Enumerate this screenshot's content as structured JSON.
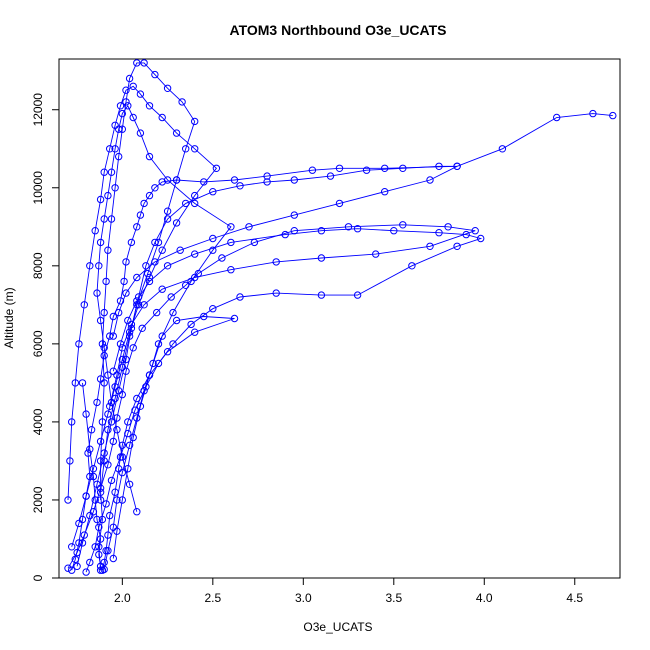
{
  "chart_data": {
    "type": "scatter",
    "title": "ATOM3 Northbound O3e_UCATS",
    "xlabel": "O3e_UCATS",
    "ylabel": "Altitude (m)",
    "xlim": [
      1.65,
      4.75
    ],
    "ylim": [
      0,
      13300
    ],
    "x_ticks": [
      2.0,
      2.5,
      3.0,
      3.5,
      4.0,
      4.5
    ],
    "x_tick_labels": [
      "2.0",
      "2.5",
      "3.0",
      "3.5",
      "4.0",
      "4.5"
    ],
    "y_ticks": [
      0,
      2000,
      4000,
      6000,
      8000,
      10000,
      12000
    ],
    "y_tick_labels": [
      "0",
      "2000",
      "4000",
      "6000",
      "8000",
      "10000",
      "12000"
    ],
    "grid": false,
    "legend": "none",
    "marker": "open-circle",
    "connected": true,
    "color": "#0000ff",
    "series": [
      {
        "x": [
          1.72,
          1.74,
          1.76,
          1.78,
          1.8,
          1.82,
          1.81,
          1.83,
          1.86,
          1.88,
          1.9,
          1.93,
          1.95,
          1.99,
          2.01,
          2.02,
          2.05,
          2.08,
          2.1,
          2.12,
          2.15,
          2.18,
          2.22,
          2.3,
          2.45,
          2.62,
          2.8,
          3.05,
          3.2,
          3.45,
          3.85,
          4.1,
          4.4,
          4.6,
          4.71
        ],
        "y": [
          200,
          480,
          900,
          1500,
          2100,
          2600,
          3200,
          3800,
          4500,
          5100,
          5700,
          6200,
          6700,
          7100,
          7600,
          8100,
          8600,
          9000,
          9300,
          9600,
          9800,
          10000,
          10150,
          10200,
          10150,
          10200,
          10300,
          10450,
          10500,
          10500,
          10550,
          11000,
          11800,
          11900,
          11850
        ]
      },
      {
        "x": [
          1.7,
          1.75,
          1.79,
          1.84,
          1.88,
          1.92,
          1.95,
          1.97,
          2.0,
          2.02,
          2.06,
          2.11,
          2.19,
          2.27,
          2.35,
          2.42,
          2.55,
          2.73,
          2.95,
          3.25,
          3.55,
          3.8,
          3.95,
          3.7,
          3.4,
          3.1,
          2.85,
          2.6,
          2.4,
          2.22,
          2.12,
          2.05,
          2.0,
          1.97,
          1.93
        ],
        "y": [
          250,
          650,
          1100,
          1700,
          2300,
          2900,
          3500,
          4100,
          4700,
          5300,
          5900,
          6400,
          6800,
          7200,
          7500,
          7800,
          8200,
          8600,
          8900,
          9000,
          9050,
          9000,
          8900,
          8500,
          8300,
          8200,
          8100,
          7900,
          7700,
          7400,
          7000,
          6500,
          5900,
          5200,
          4400
        ]
      },
      {
        "x": [
          1.88,
          1.87,
          1.89,
          1.88,
          1.9,
          1.92,
          1.96,
          2.0,
          2.04,
          2.08,
          2.14,
          2.2,
          2.25,
          2.3,
          2.35,
          2.4,
          2.33,
          2.25,
          2.18,
          2.12,
          2.08,
          2.04,
          2.02,
          2.0,
          1.98,
          1.96,
          1.94,
          1.92,
          1.91,
          1.9,
          1.89,
          1.9,
          1.89,
          1.88,
          1.88
        ],
        "y": [
          200,
          800,
          1500,
          2200,
          3000,
          3800,
          4600,
          5400,
          6200,
          7000,
          7800,
          8600,
          9400,
          10200,
          11000,
          11700,
          12200,
          12550,
          12900,
          13200,
          13200,
          12800,
          12200,
          11500,
          10800,
          10000,
          9200,
          8400,
          7600,
          6800,
          6000,
          5000,
          4000,
          3000,
          2000
        ]
      },
      {
        "x": [
          1.8,
          1.82,
          1.85,
          1.87,
          1.91,
          1.94,
          1.99,
          2.03,
          2.07,
          2.13,
          2.2,
          2.28,
          2.38,
          2.5,
          2.65,
          2.85,
          3.1,
          3.3,
          3.6,
          3.85,
          3.98,
          3.9,
          3.75,
          3.5,
          3.3,
          3.1,
          2.9,
          2.6,
          2.4,
          2.25,
          2.15,
          2.08,
          2.03,
          1.99,
          1.95
        ],
        "y": [
          150,
          400,
          800,
          1300,
          1900,
          2500,
          3100,
          3700,
          4300,
          4900,
          5500,
          6000,
          6500,
          6900,
          7200,
          7300,
          7250,
          7250,
          8000,
          8500,
          8700,
          8800,
          8850,
          8900,
          8950,
          8900,
          8800,
          8600,
          8300,
          8000,
          7600,
          7100,
          6600,
          6000,
          5300
        ]
      },
      {
        "x": [
          1.9,
          1.92,
          1.95,
          1.97,
          2.0,
          2.04,
          2.08,
          2.12,
          2.17,
          2.22,
          2.3,
          2.45,
          2.62,
          2.4,
          2.25,
          2.15,
          2.08,
          2.03,
          2.0,
          1.98,
          1.96,
          1.93,
          1.92,
          1.91,
          1.9,
          1.89,
          1.88,
          1.87,
          1.88,
          1.86,
          1.85,
          1.84,
          1.82,
          1.8,
          1.78
        ],
        "y": [
          220,
          700,
          1300,
          2000,
          2700,
          3400,
          4100,
          4800,
          5500,
          6200,
          6600,
          6700,
          6650,
          6300,
          5800,
          5200,
          4600,
          4000,
          3400,
          2800,
          2200,
          1600,
          1100,
          700,
          400,
          200,
          300,
          600,
          1000,
          1500,
          2000,
          2600,
          3300,
          4200,
          5000
        ]
      },
      {
        "x": [
          1.75,
          1.78,
          1.82,
          1.86,
          1.9,
          1.94,
          1.98,
          2.02,
          2.05,
          2.09,
          2.13,
          2.18,
          2.25,
          2.35,
          2.5,
          2.65,
          2.8,
          2.95,
          3.15,
          3.35,
          3.55,
          3.75,
          3.85,
          3.7,
          3.45,
          3.2,
          2.95,
          2.7,
          2.5,
          2.32,
          2.18,
          2.08,
          2.02,
          1.98,
          1.95
        ],
        "y": [
          300,
          900,
          1600,
          2400,
          3200,
          4000,
          4800,
          5600,
          6400,
          7200,
          8000,
          8600,
          9200,
          9600,
          9900,
          10050,
          10150,
          10200,
          10300,
          10450,
          10500,
          10550,
          10550,
          10200,
          9900,
          9600,
          9300,
          9000,
          8700,
          8400,
          8100,
          7700,
          7300,
          6800,
          6200
        ]
      },
      {
        "x": [
          1.95,
          1.97,
          2.0,
          2.03,
          2.06,
          2.1,
          2.15,
          2.2,
          2.28,
          2.38,
          2.5,
          2.6,
          2.4,
          2.25,
          2.15,
          2.1,
          2.06,
          2.03,
          2.0,
          1.98,
          1.96,
          1.94,
          1.92,
          1.9,
          1.88,
          1.87,
          1.86,
          1.88,
          1.9,
          1.92,
          1.94,
          1.97,
          2.0,
          2.04,
          2.08
        ],
        "y": [
          500,
          1200,
          2000,
          2800,
          3600,
          4400,
          5200,
          6000,
          6800,
          7600,
          8400,
          9000,
          9600,
          10200,
          10800,
          11400,
          11800,
          12100,
          11900,
          11500,
          11000,
          10400,
          9800,
          9200,
          8600,
          8000,
          7300,
          6600,
          5900,
          5200,
          4500,
          3800,
          3100,
          2400,
          1700
        ]
      },
      {
        "x": [
          1.72,
          1.76,
          1.8,
          1.84,
          1.88,
          1.92,
          1.96,
          2.0,
          2.04,
          2.09,
          2.15,
          2.22,
          2.3,
          2.4,
          2.52,
          2.4,
          2.3,
          2.22,
          2.15,
          2.1,
          2.06,
          2.02,
          1.99,
          1.96,
          1.93,
          1.9,
          1.88,
          1.85,
          1.82,
          1.79,
          1.76,
          1.74,
          1.72,
          1.71,
          1.7
        ],
        "y": [
          800,
          1400,
          2100,
          2800,
          3500,
          4200,
          4900,
          5600,
          6300,
          7000,
          7700,
          8400,
          9100,
          9800,
          10500,
          11000,
          11400,
          11800,
          12100,
          12400,
          12600,
          12500,
          12100,
          11600,
          11000,
          10400,
          9700,
          8900,
          8000,
          7000,
          6000,
          5000,
          4000,
          3000,
          2000
        ]
      }
    ]
  }
}
